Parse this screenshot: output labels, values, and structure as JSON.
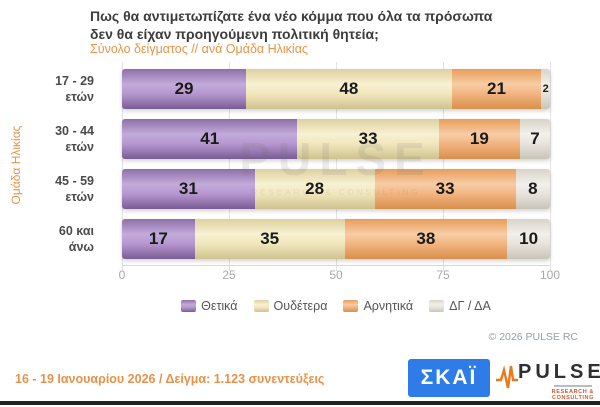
{
  "header": {
    "title": "Πως θα αντιμετωπίζατε ένα νέο κόμμα που όλα τα πρόσωπα δεν θα είχαν προηγούμενη πολιτική θητεία;",
    "subtitle": "Σύνολο δείγματος // ανά Ομάδα Ηλικίας"
  },
  "chart_data": {
    "type": "bar",
    "orientation": "horizontal",
    "stacked": true,
    "ylabel": "Ομάδα Ηλικίας",
    "categories": [
      "17 - 29\nετών",
      "30 - 44\nετών",
      "45 - 59\nετών",
      "60 και\nάνω"
    ],
    "series": [
      {
        "name": "Θετικά",
        "color": "#a98bc6",
        "values": [
          29,
          41,
          31,
          17
        ]
      },
      {
        "name": "Ουδέτερα",
        "color": "#f1e7bd",
        "values": [
          48,
          33,
          28,
          35
        ]
      },
      {
        "name": "Αρνητικά",
        "color": "#f2b480",
        "values": [
          21,
          19,
          33,
          38
        ]
      },
      {
        "name": "ΔΓ / ΔΑ",
        "color": "#e9e6df",
        "values": [
          2,
          7,
          8,
          10
        ]
      }
    ],
    "x_ticks": [
      0,
      25,
      50,
      75,
      100
    ],
    "xlim": [
      0,
      100
    ],
    "grid": true,
    "legend_position": "bottom",
    "watermark": {
      "text": "PULSE",
      "subtext": "RESEARCH & CONSULTING"
    }
  },
  "copyright": "© 2026 PULSE RC",
  "footer": {
    "info": "16 - 19 Ιανουαρίου 2026  /  Δείγμα:  1.123 συνεντεύξεις",
    "skai_logo": "ΣΚΑΪ",
    "pulse_logo": "PULSE",
    "pulse_tagline": "RESEARCH & CONSULTING"
  }
}
